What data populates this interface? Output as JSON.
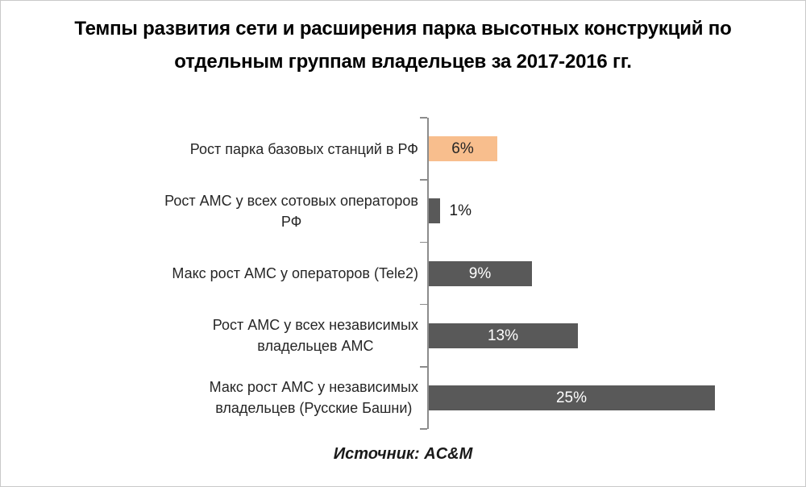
{
  "title": {
    "line1": "Темпы развития сети и расширения парка высотных конструкций по",
    "line2": "отдельным группам владельцев за 2017-2016 гг."
  },
  "source": "Источник: AC&M",
  "colors": {
    "highlight_bar": "#F8BE8D",
    "default_bar": "#595959",
    "axis": "#8c8c8c",
    "value_inside_light_bar": "#262626",
    "value_inside_dark_bar": "#ffffff",
    "value_outside": "#1a1a1a",
    "background": "#ffffff"
  },
  "chart_data": {
    "type": "bar",
    "orientation": "horizontal",
    "title": "Темпы развития сети и расширения парка высотных конструкций по отдельным группам владельцев за 2017-2016 гг.",
    "xlabel": "",
    "ylabel": "",
    "xlim": [
      0,
      26
    ],
    "grid": false,
    "legend": "none",
    "source": "Источник: AC&M",
    "categories": [
      "Рост парка базовых станций в РФ",
      "Рост АМС у всех сотовых операторов РФ",
      "Макс рост АМС у операторов (Tele2)",
      "Рост АМС у всех независимых владельцев АМС",
      "Макс рост АМС у независимых владельцев (Русские Башни)"
    ],
    "values": [
      6,
      1,
      9,
      13,
      25
    ],
    "bars": [
      {
        "label": "Рост парка базовых станций в РФ",
        "value": 6,
        "value_label": "6%",
        "color": "#F8BE8D",
        "value_position": "inside",
        "value_color": "#262626"
      },
      {
        "label": "Рост АМС у всех сотовых операторов\nРФ",
        "value": 1,
        "value_label": "1%",
        "color": "#595959",
        "value_position": "outside",
        "value_color": "#1a1a1a"
      },
      {
        "label": "Макс рост АМС у операторов (Tele2)",
        "value": 9,
        "value_label": "9%",
        "color": "#595959",
        "value_position": "inside",
        "value_color": "#ffffff"
      },
      {
        "label": "Рост АМС у всех независимых\nвладельцев АМС",
        "value": 13,
        "value_label": "13%",
        "color": "#595959",
        "value_position": "inside",
        "value_color": "#ffffff"
      },
      {
        "label": "Макс рост АМС у независимых\nвладельцев  (Русские Башни)",
        "value": 25,
        "value_label": "25%",
        "color": "#595959",
        "value_position": "inside",
        "value_color": "#ffffff"
      }
    ]
  }
}
